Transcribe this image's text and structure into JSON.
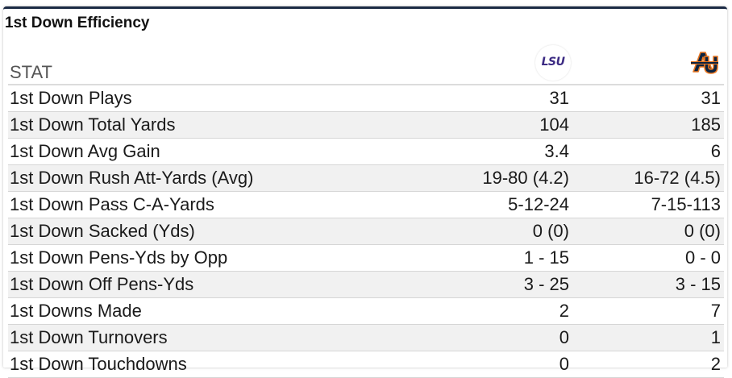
{
  "panel": {
    "title": "1st Down Efficiency"
  },
  "table": {
    "stat_header": "STAT",
    "teams": [
      {
        "abbr": "LSU",
        "logo_text": "LSU",
        "logo_icon": "lsu-logo-icon",
        "color": "#3c2b83"
      },
      {
        "abbr": "AU",
        "logo_text": "AU",
        "logo_icon": "auburn-logo-icon",
        "color": "#0c2340",
        "accent": "#e87722"
      }
    ],
    "rows": [
      {
        "stat": "1st Down Plays",
        "lsu": "31",
        "auburn": "31"
      },
      {
        "stat": "1st Down Total Yards",
        "lsu": "104",
        "auburn": "185"
      },
      {
        "stat": "1st Down Avg Gain",
        "lsu": "3.4",
        "auburn": "6"
      },
      {
        "stat": "1st Down Rush Att-Yards (Avg)",
        "lsu": "19-80 (4.2)",
        "auburn": "16-72 (4.5)"
      },
      {
        "stat": "1st Down Pass C-A-Yards",
        "lsu": "5-12-24",
        "auburn": "7-15-113"
      },
      {
        "stat": "1st Down Sacked (Yds)",
        "lsu": "0 (0)",
        "auburn": "0 (0)"
      },
      {
        "stat": "1st Down Pens-Yds by Opp",
        "lsu": "1 - 15",
        "auburn": "0 - 0"
      },
      {
        "stat": "1st Down Off Pens-Yds",
        "lsu": "3 - 25",
        "auburn": "3 - 15"
      },
      {
        "stat": "1st Downs Made",
        "lsu": "2",
        "auburn": "7"
      },
      {
        "stat": "1st Down Turnovers",
        "lsu": "0",
        "auburn": "1"
      },
      {
        "stat": "1st Down Touchdowns",
        "lsu": "0",
        "auburn": "2"
      }
    ]
  },
  "colors": {
    "border_top": "#1b2a44",
    "row_stripe": "#f1f1f1",
    "row_divider": "#d6d6d6"
  }
}
